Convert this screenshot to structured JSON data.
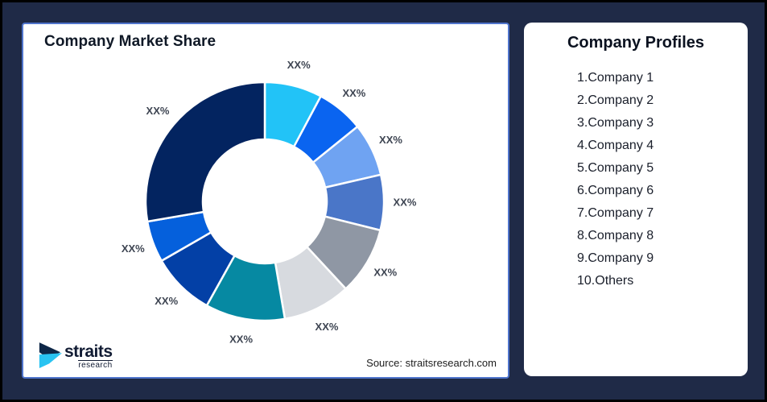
{
  "page": {
    "background": "#1F2A47",
    "frame_border": "#000000"
  },
  "chart_data": {
    "type": "donut",
    "title": "Company Market Share",
    "source": "Source: straitsresearch.com",
    "start_angle_deg": 0,
    "direction": "clockwise",
    "inner_radius_ratio": 0.52,
    "legend": "none",
    "segments": [
      {
        "label": "XX%",
        "value": 7.8,
        "color": "#22C3F7"
      },
      {
        "label": "XX%",
        "value": 6.4,
        "color": "#0A64F0"
      },
      {
        "label": "XX%",
        "value": 7.2,
        "color": "#6FA3F2"
      },
      {
        "label": "XX%",
        "value": 7.5,
        "color": "#4A76C8"
      },
      {
        "label": "XX%",
        "value": 9.2,
        "color": "#8F97A4"
      },
      {
        "label": "XX%",
        "value": 9.2,
        "color": "#D7DADF"
      },
      {
        "label": "XX%",
        "value": 10.8,
        "color": "#0689A2"
      },
      {
        "label": "XX%",
        "value": 8.6,
        "color": "#0340A6"
      },
      {
        "label": "XX%",
        "value": 5.6,
        "color": "#0560DC"
      },
      {
        "label": "XX%",
        "value": 27.7,
        "color": "#032460"
      }
    ]
  },
  "profiles": {
    "title": "Company Profiles",
    "items": [
      "1.Company 1",
      "2.Company 2",
      "3.Company 3",
      "4.Company 4",
      "5.Company 5",
      "6.Company 6",
      "7.Company 7",
      "8.Company 8",
      "9.Company 9",
      "10.Others"
    ]
  },
  "logo": {
    "name": "straits",
    "sub": "research",
    "mark_top_color": "#0E2747",
    "mark_bottom_color": "#29C3F1"
  },
  "colors": {
    "card_border": "#4F74CC",
    "donut_label_text": "#3E4552",
    "segment_stroke": "#FFFFFF"
  }
}
